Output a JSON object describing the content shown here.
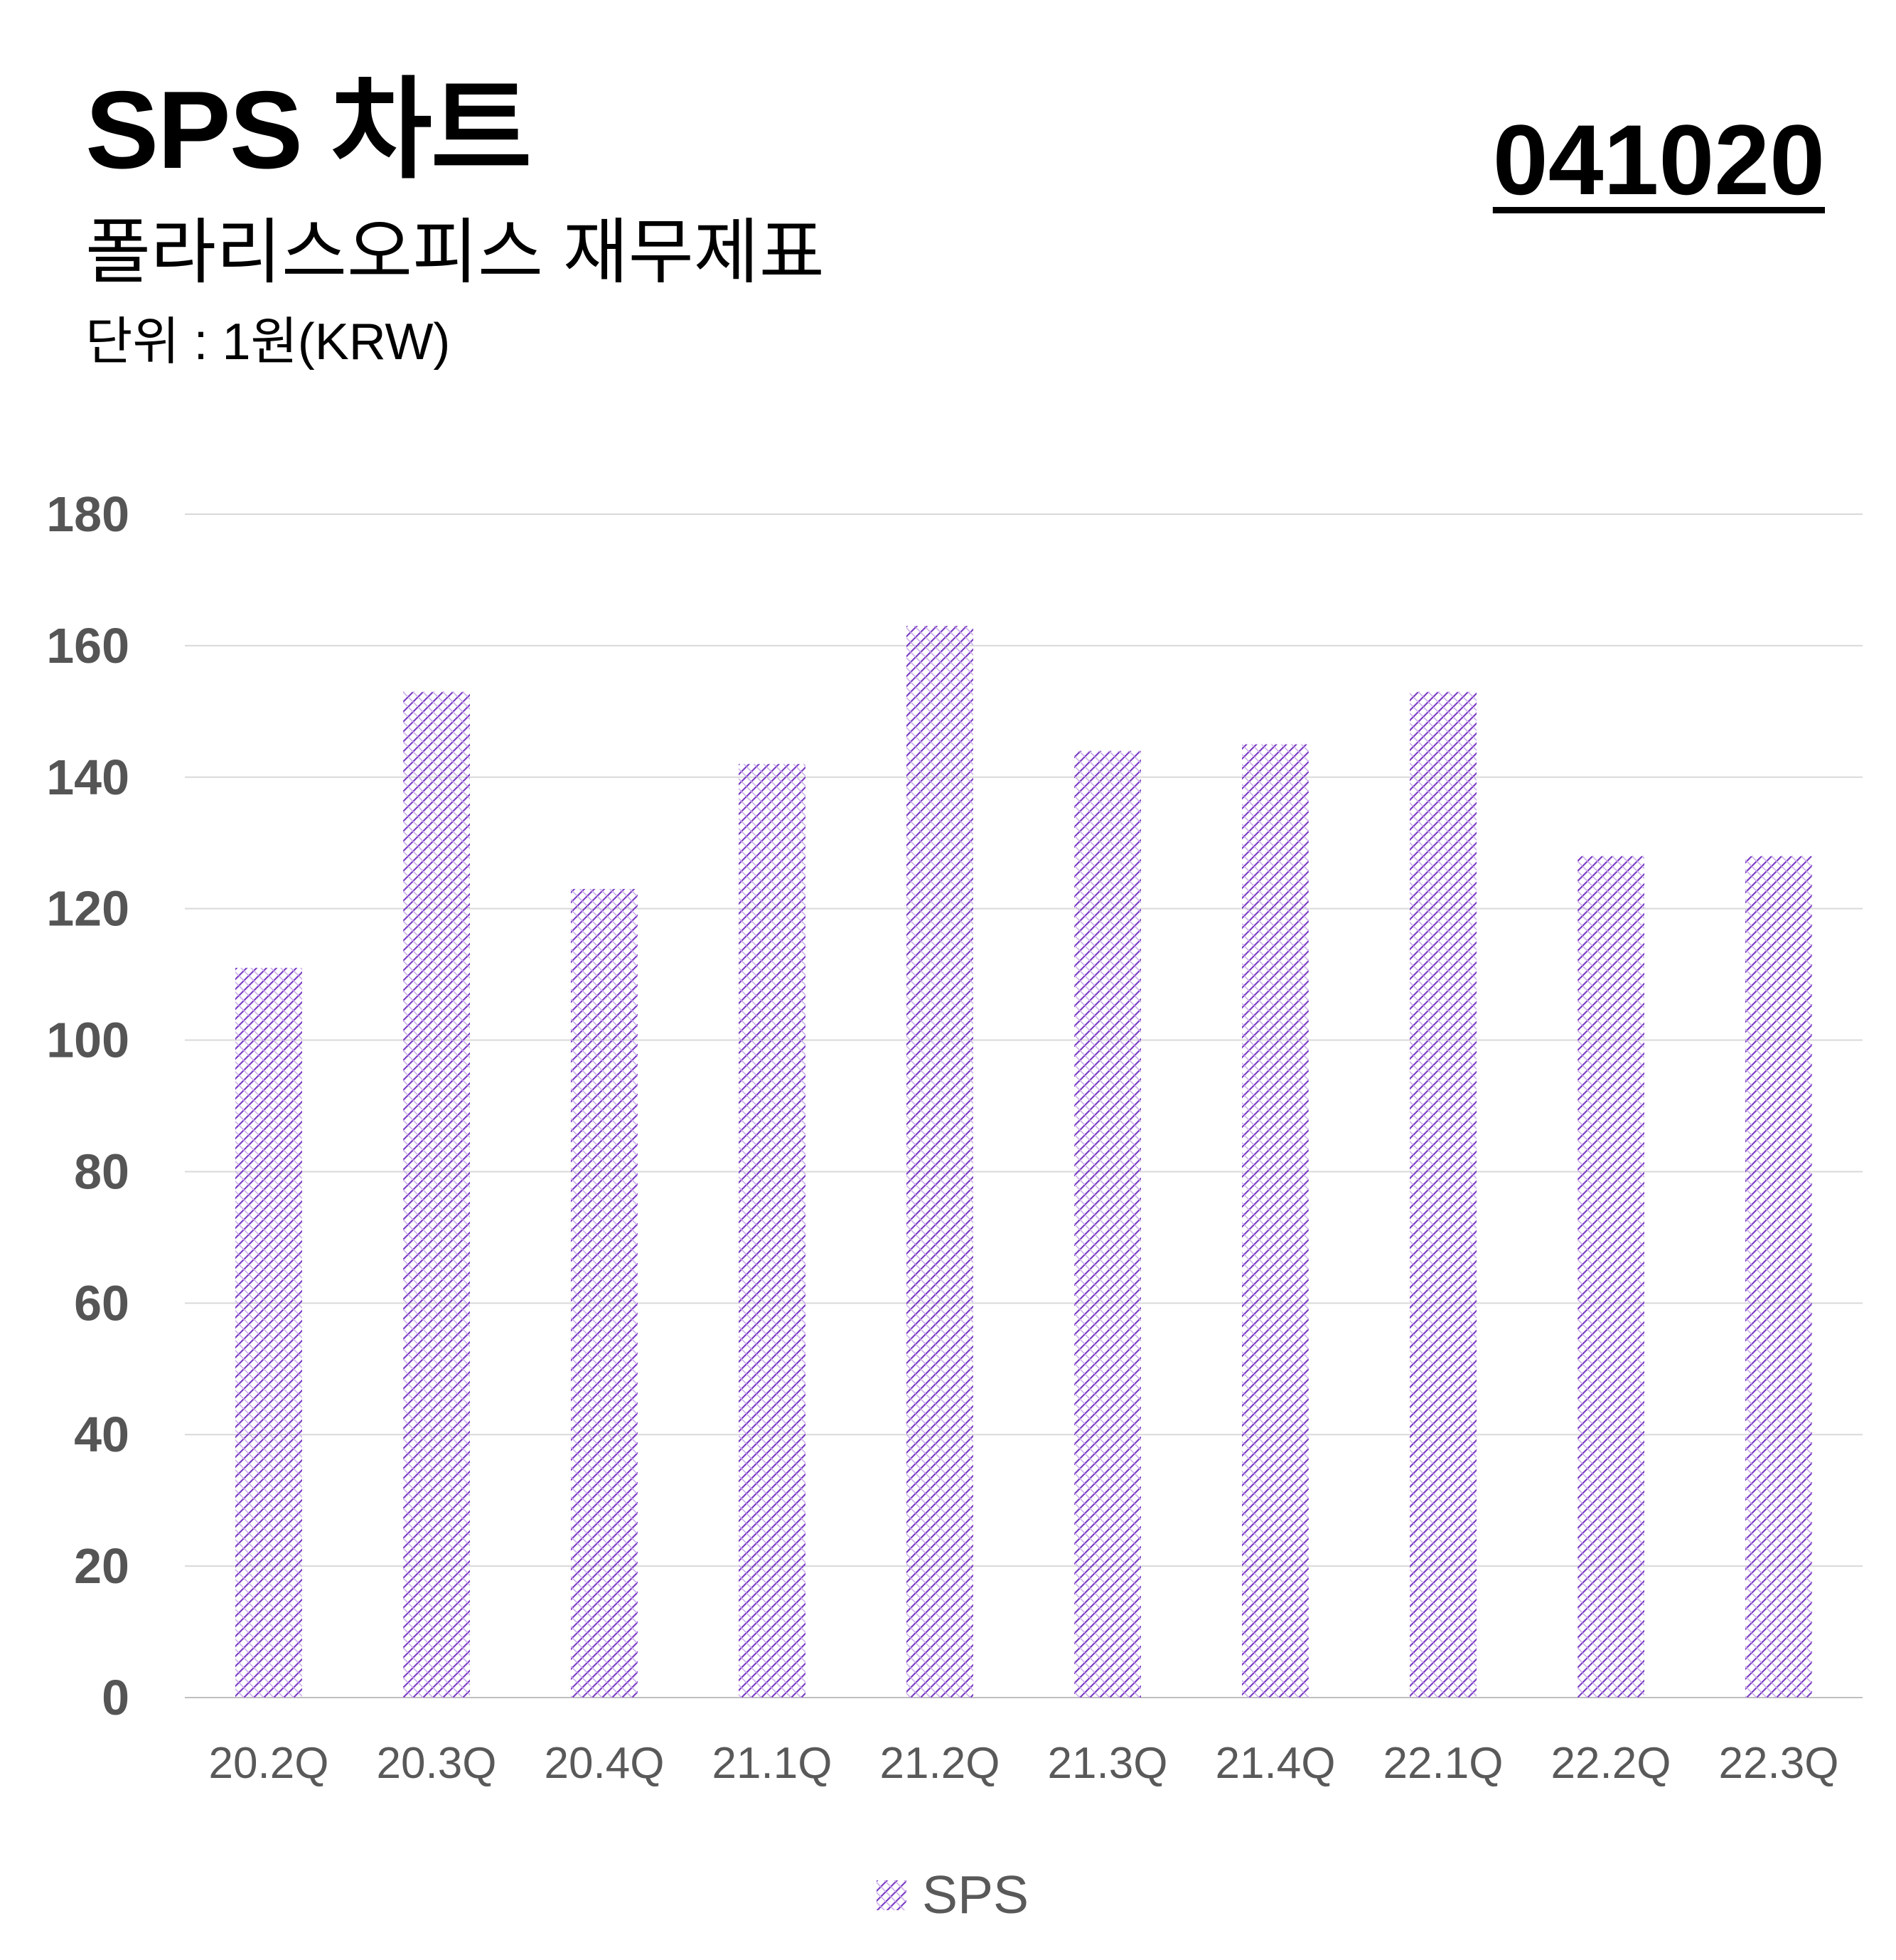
{
  "header": {
    "title": "SPS 차트",
    "subtitle": "폴라리스오피스 재무제표",
    "unit": "단위 : 1원(KRW)",
    "code": "041020"
  },
  "colors": {
    "bar_pattern": "#7b3fc4",
    "grid": "#d9d9d9",
    "axis_text": "#555555"
  },
  "chart_data": {
    "type": "bar",
    "categories": [
      "20.2Q",
      "20.3Q",
      "20.4Q",
      "21.1Q",
      "21.2Q",
      "21.3Q",
      "21.4Q",
      "22.1Q",
      "22.2Q",
      "22.3Q"
    ],
    "series": [
      {
        "name": "SPS",
        "values": [
          111,
          153,
          123,
          142,
          163,
          144,
          145,
          153,
          128,
          128
        ]
      }
    ],
    "yticks": [
      0,
      20,
      40,
      60,
      80,
      100,
      120,
      140,
      160,
      180
    ],
    "ylim": [
      0,
      180
    ],
    "grid": true,
    "legend": "bottom"
  }
}
